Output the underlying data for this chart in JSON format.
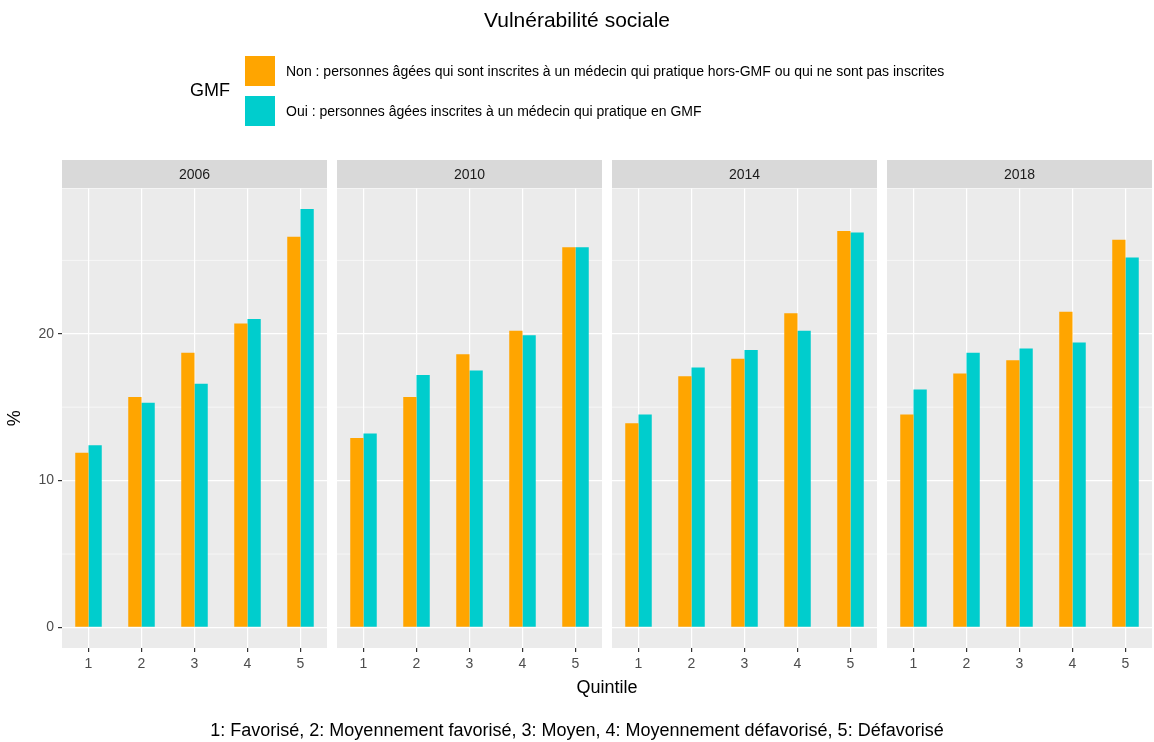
{
  "chart_data": [
    {
      "type": "other",
      "title": "Vulnérabilité sociale",
      "xlabel": "Quintile",
      "annotations": [
        "1: Favorisé, 2: Moyennement favorisé, 3: Moyen, 4: Moyennement défavorisé, 5: Défavorisé"
      ]
    },
    {
      "type": "bar",
      "subtitle": "2006",
      "ylabel": "%",
      "legend_title": "GMF",
      "legend": "top",
      "categories": [
        "1",
        "2",
        "3",
        "4",
        "5"
      ],
      "ylim": [
        -1.4,
        29.9
      ],
      "yticks": [
        0,
        10,
        20
      ],
      "grid": true,
      "series": [
        {
          "name": "Non : personnes âgées qui sont inscrites à un médecin qui pratique hors-GMF ou qui ne sont pas inscrites",
          "color": "#ffa500",
          "values": [
            11.9,
            15.7,
            18.7,
            20.7,
            26.6
          ]
        },
        {
          "name": "Oui : personnes âgées inscrites à un médecin qui pratique en GMF",
          "color": "#00cdcd",
          "values": [
            12.4,
            15.3,
            16.6,
            21.0,
            28.5
          ]
        }
      ]
    },
    {
      "type": "bar",
      "subtitle": "2010",
      "categories": [
        "1",
        "2",
        "3",
        "4",
        "5"
      ],
      "ylim": [
        -1.4,
        29.9
      ],
      "yticks": [
        0,
        10,
        20
      ],
      "grid": true,
      "tick_labels": "x",
      "series": [
        {
          "color": "#ffa500",
          "values": [
            12.9,
            15.7,
            18.6,
            20.2,
            25.9
          ]
        },
        {
          "color": "#00cdcd",
          "values": [
            13.2,
            17.2,
            17.5,
            19.9,
            25.9
          ]
        }
      ]
    },
    {
      "type": "bar",
      "subtitle": "2014",
      "categories": [
        "1",
        "2",
        "3",
        "4",
        "5"
      ],
      "ylim": [
        -1.4,
        29.9
      ],
      "yticks": [
        0,
        10,
        20
      ],
      "grid": true,
      "tick_labels": "x",
      "series": [
        {
          "color": "#ffa500",
          "values": [
            13.9,
            17.1,
            18.3,
            21.4,
            27.0
          ]
        },
        {
          "color": "#00cdcd",
          "values": [
            14.5,
            17.7,
            18.9,
            20.2,
            26.9
          ]
        }
      ]
    },
    {
      "type": "bar",
      "subtitle": "2018",
      "categories": [
        "1",
        "2",
        "3",
        "4",
        "5"
      ],
      "ylim": [
        -1.4,
        29.9
      ],
      "yticks": [
        0,
        10,
        20
      ],
      "grid": true,
      "tick_labels": "x",
      "series": [
        {
          "color": "#ffa500",
          "values": [
            14.5,
            17.3,
            18.2,
            21.5,
            26.4
          ]
        },
        {
          "color": "#00cdcd",
          "values": [
            16.2,
            18.7,
            19.0,
            19.4,
            25.2
          ]
        }
      ]
    }
  ]
}
